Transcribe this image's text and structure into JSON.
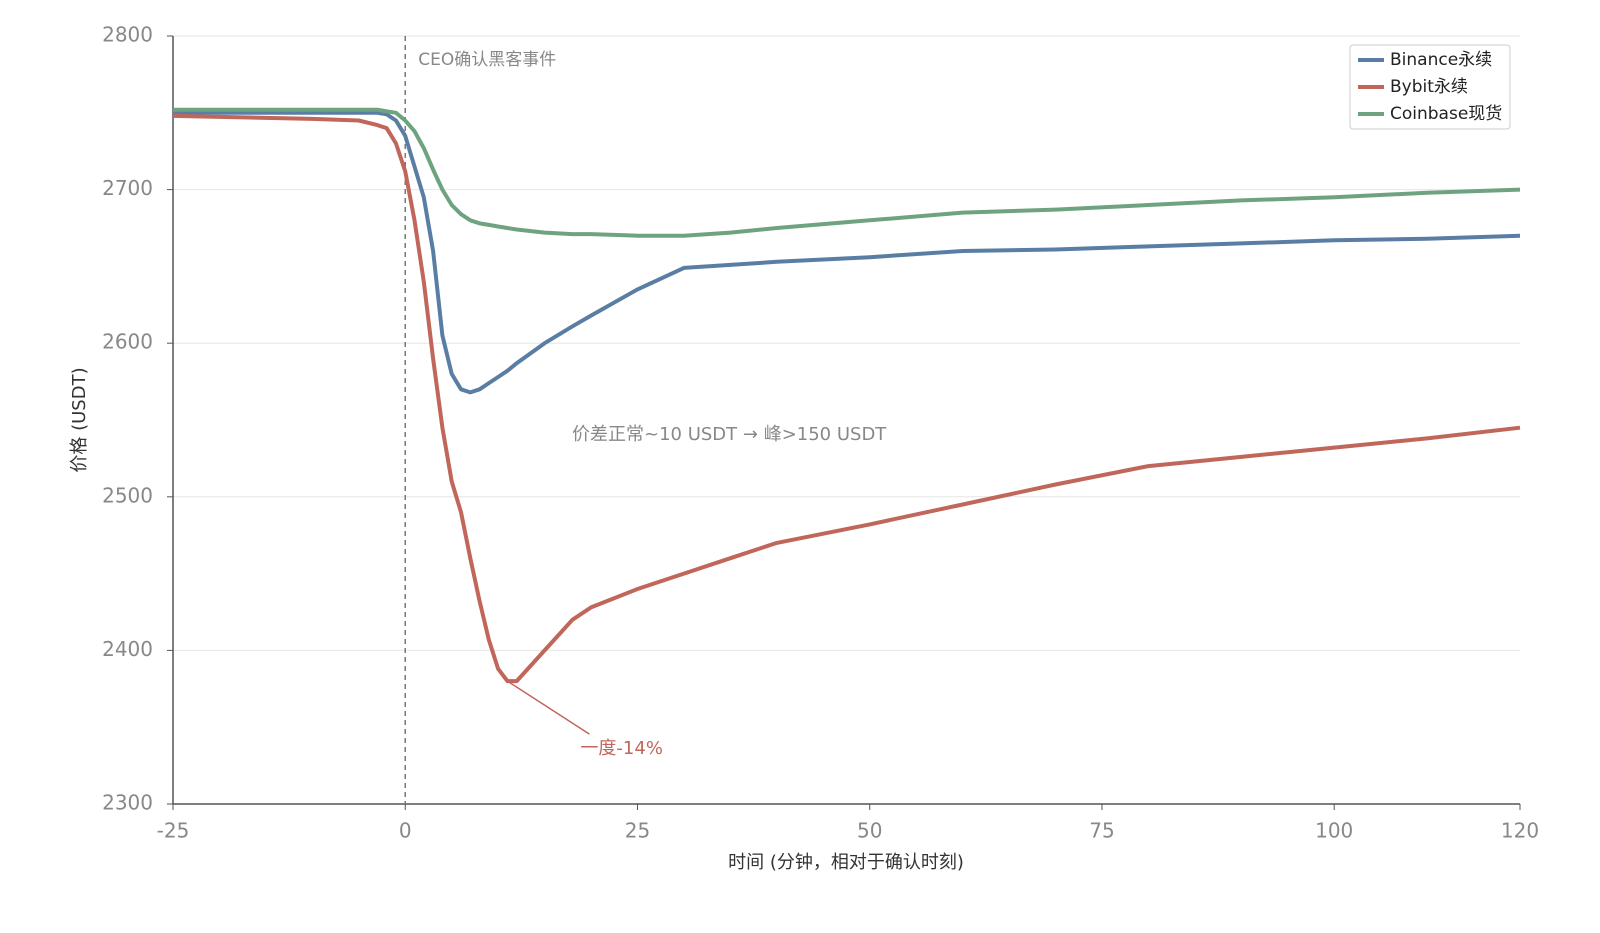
{
  "chart_data": {
    "type": "line",
    "xlabel": "时间 (分钟，相对于确认时刻)",
    "ylabel": "价格 (USDT)",
    "x": [
      -25,
      -10,
      -5,
      -3,
      -2,
      -1,
      0,
      1,
      2,
      3,
      4,
      5,
      6,
      7,
      8,
      9,
      10,
      11,
      12,
      15,
      18,
      20,
      25,
      30,
      35,
      40,
      50,
      60,
      70,
      80,
      90,
      100,
      110,
      120
    ],
    "series": [
      {
        "name": "Binance永续",
        "color": "#5a7ea3",
        "values": [
          2750,
          2750,
          2750,
          2750,
          2749,
          2745,
          2735,
          2715,
          2695,
          2660,
          2605,
          2580,
          2570,
          2568,
          2570,
          2574,
          2578,
          2582,
          2587,
          2600,
          2611,
          2618,
          2635,
          2649,
          2651,
          2653,
          2656,
          2660,
          2661,
          2663,
          2665,
          2667,
          2668,
          2670
        ]
      },
      {
        "name": "Bybit永续",
        "color": "#c0665a",
        "values": [
          2748,
          2746,
          2745,
          2742,
          2740,
          2730,
          2712,
          2680,
          2640,
          2590,
          2545,
          2510,
          2490,
          2460,
          2432,
          2407,
          2388,
          2380,
          2380,
          2400,
          2420,
          2428,
          2440,
          2450,
          2460,
          2470,
          2482,
          2495,
          2508,
          2520,
          2526,
          2532,
          2538,
          2545
        ]
      },
      {
        "name": "Coinbase现货",
        "color": "#6fa380",
        "values": [
          2752,
          2752,
          2752,
          2752,
          2751,
          2750,
          2745,
          2738,
          2727,
          2713,
          2700,
          2690,
          2684,
          2680,
          2678,
          2677,
          2676,
          2675,
          2674,
          2672,
          2671,
          2671,
          2670,
          2670,
          2672,
          2675,
          2680,
          2685,
          2687,
          2690,
          2693,
          2695,
          2698,
          2700
        ]
      }
    ],
    "xlim": [
      -25,
      120
    ],
    "xticks": [
      -25,
      0,
      25,
      50,
      75,
      100,
      120
    ],
    "ylim": [
      2300,
      2800
    ],
    "yticks": [
      2300,
      2400,
      2500,
      2600,
      2700,
      2800
    ],
    "grid": true,
    "legend": "upper right",
    "event": {
      "text": "CEO确认黑客事件",
      "x": 0
    },
    "note": "价差正常~10 USDT → 峰>150 USDT",
    "arrow": {
      "text": "一度-14%",
      "x": 11,
      "y": 2380,
      "color": "#c0665a"
    }
  }
}
